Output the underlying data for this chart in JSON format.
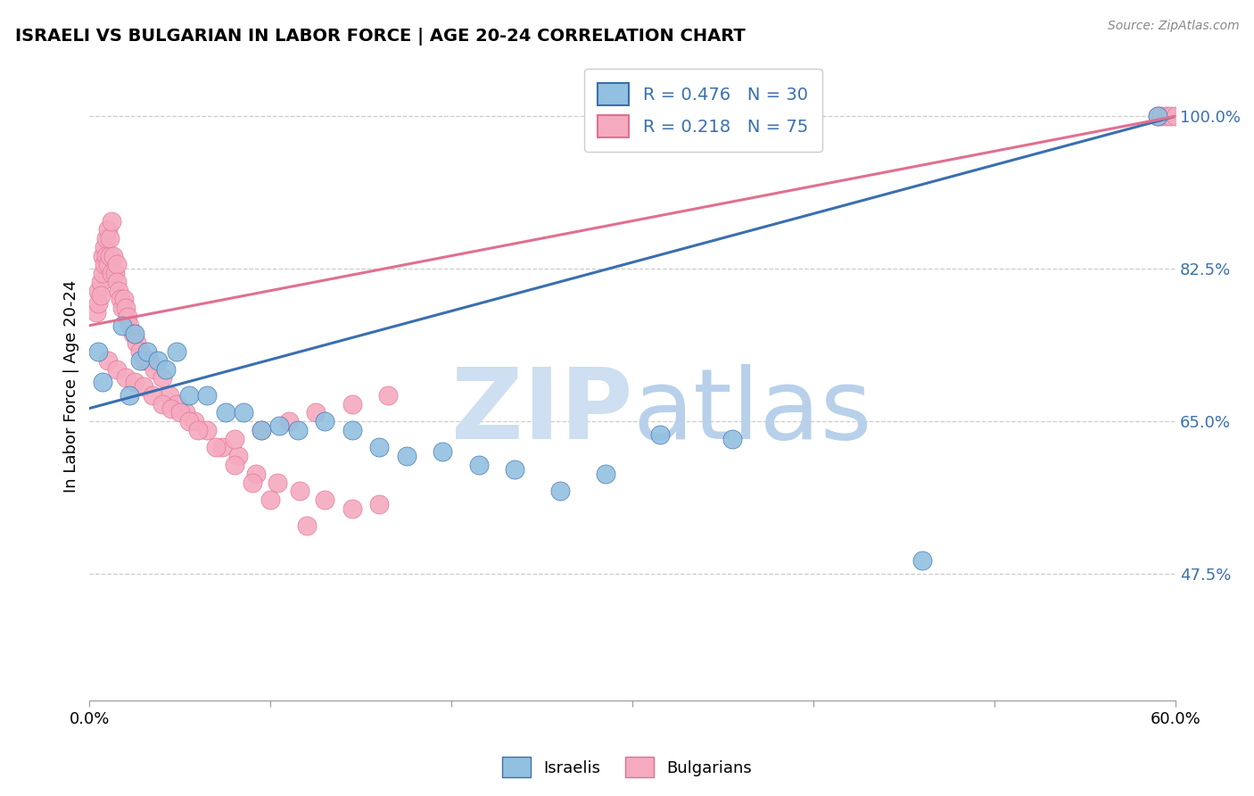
{
  "title": "ISRAELI VS BULGARIAN IN LABOR FORCE | AGE 20-24 CORRELATION CHART",
  "source": "Source: ZipAtlas.com",
  "ylabel": "In Labor Force | Age 20-24",
  "xlim": [
    0.0,
    0.6
  ],
  "ylim": [
    0.33,
    1.05
  ],
  "ytick_values": [
    0.475,
    0.65,
    0.825,
    1.0
  ],
  "ytick_labels": [
    "47.5%",
    "65.0%",
    "82.5%",
    "100.0%"
  ],
  "israelis_color": "#92c0e0",
  "bulgarians_color": "#f5aabf",
  "line_israeli_color": "#3a6faf",
  "line_bulgarian_color": "#e07090",
  "legend_label1": "R = 0.476   N = 30",
  "legend_label2": "R = 0.218   N = 75",
  "watermark_zip_color": "#cddff0",
  "watermark_atlas_color": "#b8d0ea",
  "israeli_line_x0": 0.0,
  "israeli_line_y0": 0.665,
  "israeli_line_x1": 0.6,
  "israeli_line_y1": 1.0,
  "bulgarian_line_x0": 0.0,
  "bulgarian_line_y0": 0.76,
  "bulgarian_line_x1": 0.6,
  "bulgarian_line_y1": 1.0,
  "israelis_x": [
    0.005,
    0.007,
    0.018,
    0.022,
    0.025,
    0.028,
    0.032,
    0.038,
    0.042,
    0.048,
    0.055,
    0.065,
    0.075,
    0.085,
    0.095,
    0.105,
    0.115,
    0.13,
    0.145,
    0.16,
    0.175,
    0.195,
    0.215,
    0.235,
    0.26,
    0.285,
    0.315,
    0.355,
    0.46,
    0.59
  ],
  "israelis_y": [
    0.73,
    0.695,
    0.76,
    0.68,
    0.75,
    0.72,
    0.73,
    0.72,
    0.71,
    0.73,
    0.68,
    0.68,
    0.66,
    0.66,
    0.64,
    0.645,
    0.64,
    0.65,
    0.64,
    0.62,
    0.61,
    0.615,
    0.6,
    0.595,
    0.57,
    0.59,
    0.635,
    0.63,
    0.49,
    1.0
  ],
  "bulgarians_x": [
    0.004,
    0.005,
    0.005,
    0.006,
    0.006,
    0.007,
    0.007,
    0.008,
    0.008,
    0.009,
    0.009,
    0.01,
    0.01,
    0.011,
    0.011,
    0.012,
    0.012,
    0.013,
    0.014,
    0.015,
    0.015,
    0.016,
    0.017,
    0.018,
    0.019,
    0.02,
    0.021,
    0.022,
    0.024,
    0.026,
    0.028,
    0.03,
    0.033,
    0.036,
    0.04,
    0.044,
    0.048,
    0.053,
    0.058,
    0.065,
    0.073,
    0.082,
    0.092,
    0.104,
    0.116,
    0.13,
    0.145,
    0.16,
    0.08,
    0.095,
    0.11,
    0.125,
    0.145,
    0.165,
    0.01,
    0.015,
    0.02,
    0.025,
    0.03,
    0.035,
    0.04,
    0.045,
    0.05,
    0.055,
    0.06,
    0.07,
    0.08,
    0.09,
    0.1,
    0.12,
    0.59,
    0.592,
    0.595,
    0.597,
    0.6
  ],
  "bulgarians_y": [
    0.775,
    0.8,
    0.785,
    0.81,
    0.795,
    0.82,
    0.84,
    0.83,
    0.85,
    0.84,
    0.86,
    0.83,
    0.87,
    0.84,
    0.86,
    0.88,
    0.82,
    0.84,
    0.82,
    0.83,
    0.81,
    0.8,
    0.79,
    0.78,
    0.79,
    0.78,
    0.77,
    0.76,
    0.75,
    0.74,
    0.73,
    0.72,
    0.72,
    0.71,
    0.7,
    0.68,
    0.67,
    0.66,
    0.65,
    0.64,
    0.62,
    0.61,
    0.59,
    0.58,
    0.57,
    0.56,
    0.55,
    0.555,
    0.63,
    0.64,
    0.65,
    0.66,
    0.67,
    0.68,
    0.72,
    0.71,
    0.7,
    0.695,
    0.69,
    0.68,
    0.67,
    0.665,
    0.66,
    0.65,
    0.64,
    0.62,
    0.6,
    0.58,
    0.56,
    0.53,
    1.0,
    1.0,
    1.0,
    1.0,
    1.0
  ]
}
